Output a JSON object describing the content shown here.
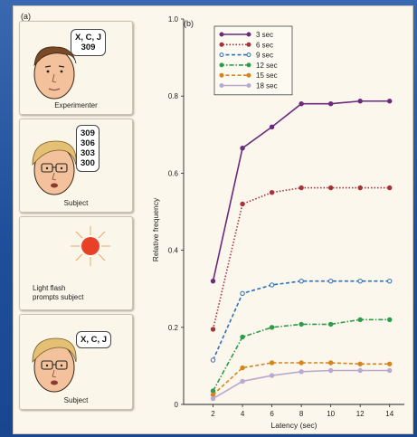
{
  "panels": {
    "a_label": "(a)",
    "experimenter": {
      "bubble_lines": [
        "X, C, J",
        "309"
      ],
      "caption": "Experimenter"
    },
    "subject": {
      "bubble_lines": [
        "309",
        "306",
        "303",
        "300"
      ],
      "caption": "Subject"
    },
    "flash": {
      "caption_lines": [
        "Light flash",
        "prompts subject"
      ]
    },
    "recall": {
      "bubble_lines": [
        "X, C, J"
      ],
      "caption": "Subject"
    }
  },
  "chart_data": {
    "type": "line",
    "panel_label": "(b)",
    "xlabel": "Latency (sec)",
    "ylabel": "Relative frequency",
    "x": [
      2,
      4,
      6,
      8,
      10,
      12,
      14
    ],
    "xlim": [
      0,
      15
    ],
    "ylim": [
      0,
      1.0
    ],
    "yticks": [
      "0",
      "0.2",
      "0.4",
      "0.6",
      "0.8",
      "1.0"
    ],
    "xticks": [
      2,
      4,
      6,
      8,
      10,
      12,
      14
    ],
    "legend_position": "top-left",
    "series": [
      {
        "name": "3 sec",
        "color": "#6b2a7c",
        "dash": "solid",
        "marker": "filled",
        "values": [
          0.32,
          0.665,
          0.72,
          0.78,
          0.78,
          0.787,
          0.787
        ]
      },
      {
        "name": "6 sec",
        "color": "#a8323a",
        "dash": "dotted",
        "marker": "filled",
        "values": [
          0.195,
          0.52,
          0.55,
          0.562,
          0.562,
          0.562,
          0.562
        ]
      },
      {
        "name": "9 sec",
        "color": "#2f70b8",
        "dash": "dashed",
        "marker": "open",
        "values": [
          0.115,
          0.288,
          0.31,
          0.32,
          0.32,
          0.32,
          0.32
        ]
      },
      {
        "name": "12 sec",
        "color": "#2e9a4a",
        "dash": "dashdot",
        "marker": "filled",
        "values": [
          0.035,
          0.175,
          0.2,
          0.208,
          0.208,
          0.22,
          0.22
        ]
      },
      {
        "name": "15 sec",
        "color": "#d8841c",
        "dash": "dashed",
        "marker": "filled",
        "values": [
          0.025,
          0.095,
          0.108,
          0.108,
          0.108,
          0.105,
          0.105
        ]
      },
      {
        "name": "18 sec",
        "color": "#b9a9cf",
        "dash": "solid",
        "marker": "filled",
        "values": [
          0.015,
          0.06,
          0.075,
          0.085,
          0.088,
          0.088,
          0.088
        ]
      }
    ]
  }
}
